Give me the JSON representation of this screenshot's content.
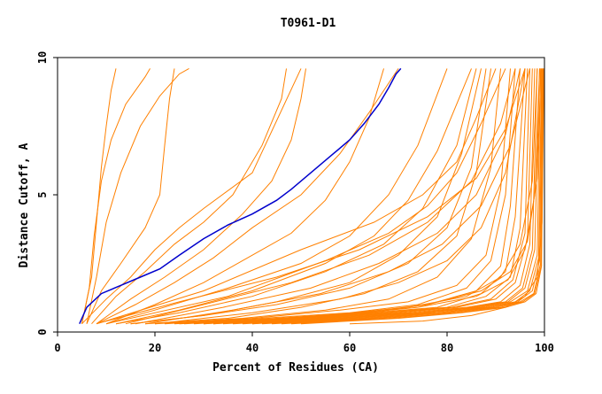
{
  "chart_data": {
    "type": "line",
    "title": "T0961-D1",
    "xlabel": "Percent of Residues (CA)",
    "ylabel": "Distance Cutoff, A",
    "xlim": [
      0,
      100
    ],
    "ylim": [
      0,
      10
    ],
    "x_ticks": [
      {
        "value": 0,
        "label": "0"
      },
      {
        "value": 20,
        "label": "20"
      },
      {
        "value": 40,
        "label": "40"
      },
      {
        "value": 60,
        "label": "60"
      },
      {
        "value": 80,
        "label": "80"
      },
      {
        "value": 100,
        "label": "100"
      }
    ],
    "y_ticks": [
      {
        "value": 0,
        "label": "0"
      },
      {
        "value": 5,
        "label": "5"
      },
      {
        "value": 10,
        "label": "10"
      }
    ],
    "grid": false,
    "colors": {
      "highlight": "#0000cc",
      "others": "#ff8000",
      "axis": "#000000"
    },
    "highlight_series": {
      "x": [
        4.5,
        6,
        9,
        13,
        17,
        21,
        25,
        30,
        35,
        40,
        45,
        48,
        52,
        56,
        60,
        63,
        66,
        68,
        69.5,
        70.5
      ],
      "y": [
        0.3,
        0.9,
        1.4,
        1.7,
        2.0,
        2.3,
        2.8,
        3.4,
        3.9,
        4.3,
        4.8,
        5.2,
        5.8,
        6.4,
        7.0,
        7.6,
        8.3,
        8.9,
        9.4,
        9.6
      ]
    },
    "series": [
      {
        "x": [
          5,
          7,
          8,
          9,
          10,
          11,
          12
        ],
        "y": [
          0.3,
          2.0,
          4.0,
          6.0,
          7.5,
          8.8,
          9.6
        ]
      },
      {
        "x": [
          5,
          6.5,
          7.5,
          9,
          11,
          14,
          18,
          19
        ],
        "y": [
          0.3,
          1.6,
          3.5,
          5.5,
          7.0,
          8.3,
          9.3,
          9.6
        ]
      },
      {
        "x": [
          6,
          8,
          10,
          13,
          17,
          21,
          25,
          27
        ],
        "y": [
          0.3,
          2.0,
          4.0,
          5.8,
          7.5,
          8.6,
          9.4,
          9.6
        ]
      },
      {
        "x": [
          6,
          9,
          13,
          18,
          21,
          22,
          23,
          24
        ],
        "y": [
          0.3,
          1.5,
          2.5,
          3.8,
          5.0,
          6.8,
          8.5,
          9.6
        ]
      },
      {
        "x": [
          5,
          10,
          15,
          20,
          25,
          30,
          40,
          50
        ],
        "y": [
          0.3,
          1.2,
          2.0,
          3.0,
          3.8,
          4.5,
          5.8,
          9.6
        ]
      },
      {
        "x": [
          7,
          12,
          18,
          24,
          30,
          36,
          42,
          46,
          47
        ],
        "y": [
          0.3,
          1.3,
          2.2,
          3.2,
          4.0,
          5.0,
          6.8,
          8.5,
          9.6
        ]
      },
      {
        "x": [
          8,
          15,
          22,
          30,
          38,
          44,
          48,
          50,
          51
        ],
        "y": [
          0.3,
          1.2,
          2.0,
          3.0,
          4.3,
          5.5,
          7.0,
          8.5,
          9.6
        ]
      },
      {
        "x": [
          8,
          16,
          24,
          32,
          40,
          50,
          58,
          64,
          70
        ],
        "y": [
          0.3,
          1.0,
          1.8,
          2.7,
          3.8,
          5.0,
          6.5,
          8.0,
          9.6
        ]
      },
      {
        "x": [
          10,
          20,
          30,
          40,
          48,
          55,
          60,
          64,
          67
        ],
        "y": [
          0.3,
          1.0,
          1.8,
          2.8,
          3.6,
          4.8,
          6.2,
          7.8,
          9.6
        ]
      },
      {
        "x": [
          10,
          20,
          35,
          50,
          60,
          68,
          74,
          80
        ],
        "y": [
          0.3,
          0.8,
          1.6,
          2.5,
          3.5,
          5.0,
          6.8,
          9.6
        ]
      },
      {
        "x": [
          12,
          25,
          40,
          55,
          65,
          72,
          78,
          85
        ],
        "y": [
          0.3,
          0.8,
          1.5,
          2.5,
          3.5,
          4.8,
          6.6,
          9.6
        ]
      },
      {
        "x": [
          12,
          25,
          40,
          55,
          67,
          75,
          82,
          86
        ],
        "y": [
          0.3,
          0.7,
          1.3,
          2.2,
          3.2,
          4.5,
          6.8,
          9.6
        ]
      },
      {
        "x": [
          15,
          30,
          45,
          60,
          70,
          78,
          83,
          87
        ],
        "y": [
          0.3,
          0.6,
          1.1,
          1.8,
          2.8,
          4.2,
          6.5,
          9.6
        ]
      },
      {
        "x": [
          15,
          30,
          45,
          60,
          72,
          80,
          85,
          88
        ],
        "y": [
          0.3,
          0.6,
          1.0,
          1.6,
          2.5,
          3.8,
          6.0,
          9.6
        ]
      },
      {
        "x": [
          18,
          35,
          50,
          63,
          74,
          82,
          86,
          89
        ],
        "y": [
          0.3,
          0.5,
          0.9,
          1.4,
          2.2,
          3.5,
          5.8,
          9.6
        ]
      },
      {
        "x": [
          20,
          38,
          55,
          68,
          78,
          85,
          89,
          91
        ],
        "y": [
          0.3,
          0.5,
          0.8,
          1.2,
          2.0,
          3.4,
          6.0,
          9.6
        ]
      },
      {
        "x": [
          8,
          30,
          50,
          65,
          75,
          82,
          86,
          90
        ],
        "y": [
          0.3,
          1.5,
          3.0,
          4.0,
          5.0,
          6.2,
          7.8,
          9.6
        ]
      },
      {
        "x": [
          10,
          35,
          55,
          68,
          76,
          82,
          87,
          92
        ],
        "y": [
          0.3,
          1.3,
          2.6,
          3.6,
          4.6,
          5.8,
          7.6,
          9.6
        ]
      },
      {
        "x": [
          22,
          40,
          58,
          72,
          82,
          88,
          91,
          93
        ],
        "y": [
          0.3,
          0.5,
          0.8,
          1.1,
          1.7,
          2.8,
          5.2,
          9.6
        ]
      },
      {
        "x": [
          24,
          42,
          60,
          74,
          84,
          89,
          92,
          94
        ],
        "y": [
          0.3,
          0.5,
          0.7,
          1.0,
          1.6,
          2.6,
          5.0,
          9.6
        ]
      },
      {
        "x": [
          25,
          45,
          62,
          76,
          86,
          91,
          93,
          95
        ],
        "y": [
          0.3,
          0.5,
          0.7,
          1.0,
          1.5,
          2.4,
          4.6,
          9.6
        ]
      },
      {
        "x": [
          26,
          46,
          64,
          78,
          87,
          92,
          94,
          96
        ],
        "y": [
          0.3,
          0.5,
          0.7,
          0.9,
          1.4,
          2.2,
          4.2,
          9.6
        ]
      },
      {
        "x": [
          28,
          48,
          66,
          80,
          88,
          93,
          95,
          96.5
        ],
        "y": [
          0.3,
          0.5,
          0.7,
          0.9,
          1.3,
          2.0,
          3.8,
          9.6
        ]
      },
      {
        "x": [
          30,
          50,
          68,
          81,
          89,
          93.5,
          96,
          97
        ],
        "y": [
          0.3,
          0.5,
          0.7,
          0.9,
          1.2,
          1.9,
          3.6,
          9.6
        ]
      },
      {
        "x": [
          32,
          52,
          70,
          82,
          90,
          94,
          96.5,
          97.5
        ],
        "y": [
          0.3,
          0.5,
          0.7,
          0.9,
          1.2,
          1.8,
          3.4,
          9.6
        ]
      },
      {
        "x": [
          34,
          54,
          72,
          84,
          91,
          95,
          97,
          98
        ],
        "y": [
          0.3,
          0.5,
          0.7,
          0.9,
          1.1,
          1.7,
          3.2,
          9.6
        ]
      },
      {
        "x": [
          36,
          56,
          74,
          85,
          92,
          95.5,
          97.5,
          98.5
        ],
        "y": [
          0.3,
          0.5,
          0.7,
          0.9,
          1.1,
          1.6,
          3.0,
          9.6
        ]
      },
      {
        "x": [
          38,
          58,
          75,
          86,
          92.5,
          96,
          98,
          99
        ],
        "y": [
          0.3,
          0.5,
          0.7,
          0.9,
          1.1,
          1.6,
          3.0,
          9.6
        ]
      },
      {
        "x": [
          40,
          60,
          76,
          87,
          93,
          96.5,
          98.5,
          99.2
        ],
        "y": [
          0.3,
          0.5,
          0.7,
          0.9,
          1.1,
          1.5,
          2.8,
          9.6
        ]
      },
      {
        "x": [
          42,
          62,
          78,
          88,
          94,
          97,
          98.8,
          99.4
        ],
        "y": [
          0.3,
          0.5,
          0.7,
          0.9,
          1.1,
          1.5,
          2.7,
          9.6
        ]
      },
      {
        "x": [
          44,
          64,
          79,
          89,
          94.5,
          97.5,
          99,
          99.5
        ],
        "y": [
          0.3,
          0.5,
          0.7,
          0.9,
          1.1,
          1.5,
          2.6,
          9.6
        ]
      },
      {
        "x": [
          46,
          66,
          80,
          90,
          95,
          97.8,
          99.2,
          99.6
        ],
        "y": [
          0.3,
          0.5,
          0.7,
          0.9,
          1.1,
          1.4,
          2.5,
          9.6
        ]
      },
      {
        "x": [
          48,
          68,
          82,
          91,
          95.5,
          98,
          99.3,
          99.7
        ],
        "y": [
          0.3,
          0.5,
          0.7,
          0.9,
          1.1,
          1.4,
          2.4,
          9.6
        ]
      },
      {
        "x": [
          50,
          70,
          83,
          92,
          96,
          98.3,
          99.4,
          99.8
        ],
        "y": [
          0.3,
          0.5,
          0.7,
          0.9,
          1.1,
          1.4,
          2.4,
          9.6
        ]
      },
      {
        "x": [
          20,
          40,
          58,
          70,
          80,
          87,
          92,
          96
        ],
        "y": [
          0.3,
          0.7,
          1.2,
          1.8,
          2.6,
          3.8,
          5.8,
          9.6
        ]
      },
      {
        "x": [
          18,
          36,
          54,
          68,
          79,
          87,
          93,
          97
        ],
        "y": [
          0.3,
          0.8,
          1.4,
          2.2,
          3.2,
          4.6,
          6.8,
          9.6
        ]
      },
      {
        "x": [
          16,
          34,
          52,
          66,
          78,
          86,
          92,
          95
        ],
        "y": [
          0.3,
          0.9,
          1.6,
          2.5,
          3.6,
          5.0,
          7.2,
          9.6
        ]
      },
      {
        "x": [
          14,
          30,
          48,
          64,
          76,
          85,
          91,
          94
        ],
        "y": [
          0.3,
          1.0,
          1.8,
          2.8,
          4.0,
          5.5,
          7.6,
          9.6
        ]
      },
      {
        "x": [
          30,
          55,
          72,
          84,
          91,
          95,
          97.5,
          98.5
        ],
        "y": [
          0.3,
          0.6,
          0.9,
          1.3,
          2.0,
          3.2,
          5.5,
          9.6
        ]
      },
      {
        "x": [
          32,
          57,
          74,
          86,
          92.5,
          96,
          98,
          99
        ],
        "y": [
          0.3,
          0.6,
          0.9,
          1.3,
          1.9,
          3.0,
          5.0,
          9.6
        ]
      },
      {
        "x": [
          60,
          75,
          85,
          92,
          96,
          98.5,
          99.5,
          99.9
        ],
        "y": [
          0.3,
          0.4,
          0.6,
          0.9,
          1.3,
          2.0,
          4.0,
          9.6
        ]
      },
      {
        "x": [
          40,
          60,
          76,
          87,
          93,
          96.5,
          98.5,
          99.3
        ],
        "y": [
          0.3,
          0.6,
          1.0,
          1.5,
          2.2,
          3.3,
          5.6,
          9.6
        ]
      },
      {
        "x": [
          8,
          25,
          45,
          62,
          76,
          86,
          92,
          96
        ],
        "y": [
          0.3,
          1.1,
          2.0,
          3.0,
          4.2,
          5.6,
          7.4,
          9.6
        ]
      }
    ]
  }
}
